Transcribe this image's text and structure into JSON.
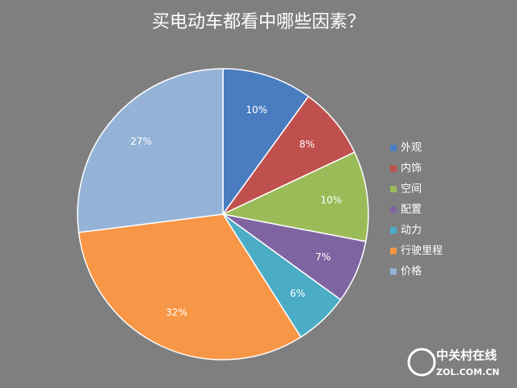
{
  "chart_data": {
    "type": "pie",
    "title": "买电动车都看中哪些因素？",
    "categories": [
      "外观",
      "内饰",
      "空间",
      "配置",
      "动力",
      "行驶里程",
      "价格"
    ],
    "values": [
      10,
      8,
      10,
      7,
      6,
      32,
      27
    ],
    "value_labels": [
      "10%",
      "8%",
      "10%",
      "7%",
      "6%",
      "32%",
      "27%"
    ],
    "colors": [
      "#4a7cc0",
      "#c0504d",
      "#9bbb59",
      "#8064a2",
      "#4bacc6",
      "#f79646",
      "#95b3d7"
    ],
    "legend": "right"
  },
  "watermark": {
    "name": "中关村在线",
    "url": "ZOL.COM.CN"
  }
}
